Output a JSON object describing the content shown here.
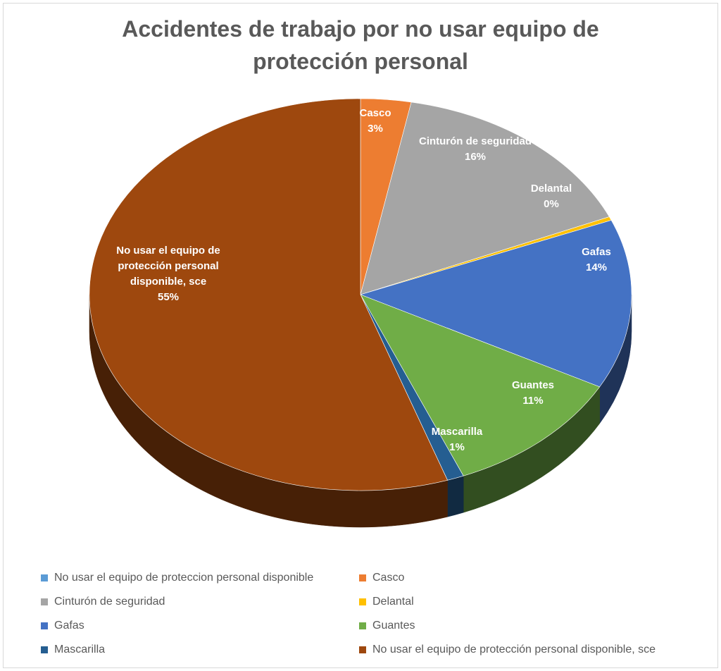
{
  "chart_data": {
    "type": "pie",
    "title_lines": [
      "Accidentes de trabajo por no usar equipo de",
      "protección personal"
    ],
    "slices": [
      {
        "name": "Casco",
        "label": "Casco",
        "percent_label": "3%",
        "value": 3,
        "color": "#ed7d31"
      },
      {
        "name": "Cinturón de seguridad",
        "label": "Cinturón de seguridad",
        "percent_label": "16%",
        "value": 15.5,
        "color": "#a5a5a5"
      },
      {
        "name": "Delantal",
        "label": "Delantal",
        "percent_label": "0%",
        "value": 0.3,
        "color": "#ffc000"
      },
      {
        "name": "Gafas",
        "label": "Gafas",
        "percent_label": "14%",
        "value": 14,
        "color": "#4472c4"
      },
      {
        "name": "Guantes",
        "label": "Guantes",
        "percent_label": "11%",
        "value": 11,
        "color": "#70ad47"
      },
      {
        "name": "Mascarilla",
        "label": "Mascarilla",
        "percent_label": "1%",
        "value": 1,
        "color": "#255e91"
      },
      {
        "name": "No usar el equipo de protección personal disponible, sce",
        "label": "No usar el equipo de protección personal disponible, sce",
        "label_lines": [
          "No usar el equipo de",
          "protección personal",
          "disponible, sce"
        ],
        "percent_label": "55%",
        "value": 55.2,
        "color": "#9e480e"
      }
    ],
    "legend": [
      {
        "label": "No usar el equipo de proteccion personal disponible",
        "color": "#5b9bd5"
      },
      {
        "label": "Casco",
        "color": "#ed7d31"
      },
      {
        "label": "Cinturón de seguridad",
        "color": "#a5a5a5"
      },
      {
        "label": "Delantal",
        "color": "#ffc000"
      },
      {
        "label": "Gafas",
        "color": "#4472c4"
      },
      {
        "label": "Guantes",
        "color": "#70ad47"
      },
      {
        "label": "Mascarilla",
        "color": "#255e91"
      },
      {
        "label": "No usar el equipo de protección personal disponible, sce",
        "color": "#9e480e"
      }
    ],
    "legend_position": "bottom",
    "style": "3d"
  }
}
